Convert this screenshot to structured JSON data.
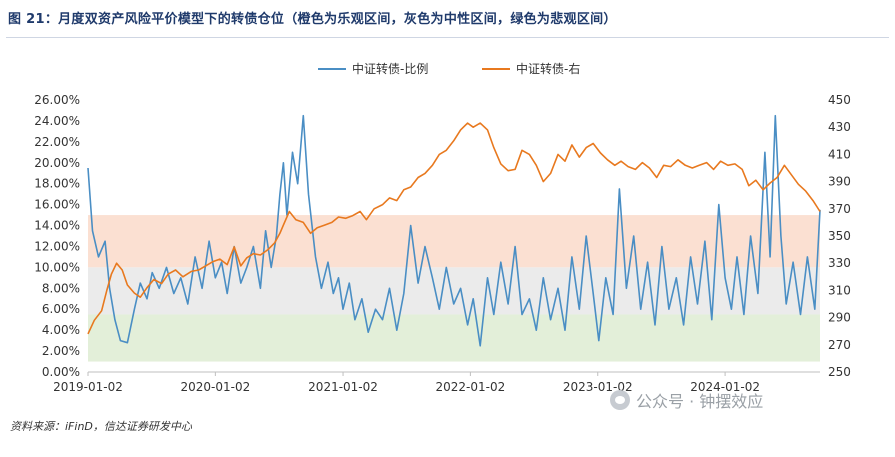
{
  "header": {
    "title": "图 21：月度双资产风险平价模型下的转债仓位（橙色为乐观区间，灰色为中性区间，绿色为悲观区间）"
  },
  "footer": {
    "source": "资料来源：iFinD，信达证券研发中心",
    "watermark": "公众号 · 钟摆效应"
  },
  "colors": {
    "ratio_line": "#4a8ec4",
    "right_line": "#e8791f",
    "band_optimistic": "#fbe0d2",
    "band_neutral": "#ebebeb",
    "band_pessimistic": "#e3efd9"
  },
  "chart_data": {
    "type": "line",
    "legend_position": "top",
    "grid": false,
    "x_ticks": [
      "2019-01-02",
      "2020-01-02",
      "2021-01-02",
      "2022-01-02",
      "2023-01-02",
      "2024-01-02"
    ],
    "x_range": [
      "2019-01-02",
      "2024-09-30"
    ],
    "y_left": {
      "ticks": [
        "0.00%",
        "2.00%",
        "4.00%",
        "6.00%",
        "8.00%",
        "10.00%",
        "12.00%",
        "14.00%",
        "16.00%",
        "18.00%",
        "20.00%",
        "22.00%",
        "24.00%",
        "26.00%"
      ],
      "range": [
        0,
        26
      ]
    },
    "y_right": {
      "ticks": [
        "250",
        "270",
        "290",
        "310",
        "330",
        "350",
        "370",
        "390",
        "410",
        "430",
        "450"
      ],
      "range": [
        250,
        450
      ]
    },
    "bands": [
      {
        "name": "乐观区间",
        "from": 10,
        "to": 15,
        "color": "#fbe0d2"
      },
      {
        "name": "中性区间",
        "from": 5.5,
        "to": 10,
        "color": "#ebebeb"
      },
      {
        "name": "悲观区间",
        "from": 1,
        "to": 5.5,
        "color": "#e3efd9"
      }
    ],
    "series": [
      {
        "name": "中证转债-比例",
        "axis": "left",
        "color": "#4a8ec4",
        "x": [
          "2019-01-02",
          "2019-01-15",
          "2019-02-01",
          "2019-02-20",
          "2019-03-05",
          "2019-03-20",
          "2019-04-05",
          "2019-04-25",
          "2019-05-15",
          "2019-06-01",
          "2019-06-20",
          "2019-07-05",
          "2019-07-25",
          "2019-08-15",
          "2019-09-05",
          "2019-09-25",
          "2019-10-15",
          "2019-11-05",
          "2019-11-25",
          "2019-12-15",
          "2020-01-02",
          "2020-01-20",
          "2020-02-05",
          "2020-02-25",
          "2020-03-15",
          "2020-04-01",
          "2020-04-20",
          "2020-05-10",
          "2020-05-25",
          "2020-06-10",
          "2020-06-25",
          "2020-07-05",
          "2020-07-15",
          "2020-07-25",
          "2020-08-10",
          "2020-08-25",
          "2020-09-10",
          "2020-09-25",
          "2020-10-15",
          "2020-11-01",
          "2020-11-20",
          "2020-12-05",
          "2020-12-20",
          "2021-01-02",
          "2021-01-20",
          "2021-02-05",
          "2021-02-25",
          "2021-03-15",
          "2021-04-05",
          "2021-04-25",
          "2021-05-15",
          "2021-06-05",
          "2021-06-25",
          "2021-07-15",
          "2021-08-05",
          "2021-08-25",
          "2021-09-15",
          "2021-10-05",
          "2021-10-25",
          "2021-11-15",
          "2021-12-05",
          "2021-12-25",
          "2022-01-10",
          "2022-01-30",
          "2022-02-20",
          "2022-03-10",
          "2022-03-30",
          "2022-04-20",
          "2022-05-10",
          "2022-05-30",
          "2022-06-20",
          "2022-07-10",
          "2022-07-30",
          "2022-08-20",
          "2022-09-10",
          "2022-09-30",
          "2022-10-20",
          "2022-11-10",
          "2022-11-30",
          "2022-12-20",
          "2023-01-05",
          "2023-01-25",
          "2023-02-15",
          "2023-03-05",
          "2023-03-25",
          "2023-04-15",
          "2023-05-05",
          "2023-05-25",
          "2023-06-15",
          "2023-07-05",
          "2023-07-25",
          "2023-08-15",
          "2023-09-05",
          "2023-09-25",
          "2023-10-15",
          "2023-11-05",
          "2023-11-25",
          "2023-12-15",
          "2024-01-02",
          "2024-01-20",
          "2024-02-05",
          "2024-02-25",
          "2024-03-15",
          "2024-04-05",
          "2024-04-25",
          "2024-05-10",
          "2024-05-25",
          "2024-06-10",
          "2024-06-25",
          "2024-07-15",
          "2024-08-05",
          "2024-08-25",
          "2024-09-15",
          "2024-09-30"
        ],
        "values": [
          19.5,
          13.5,
          11.0,
          12.5,
          8.0,
          5.0,
          3.0,
          2.8,
          6.0,
          8.5,
          7.0,
          9.5,
          8.0,
          10.0,
          7.5,
          9.0,
          6.5,
          11.0,
          8.0,
          12.5,
          9.0,
          10.5,
          7.5,
          12.0,
          8.5,
          10.0,
          12.0,
          8.0,
          13.5,
          10.0,
          13.0,
          17.0,
          20.0,
          15.0,
          21.0,
          18.0,
          24.5,
          17.0,
          11.0,
          8.0,
          10.5,
          7.5,
          9.0,
          6.0,
          8.5,
          5.0,
          7.0,
          3.8,
          6.0,
          5.0,
          8.0,
          4.0,
          7.5,
          14.0,
          8.5,
          12.0,
          9.0,
          6.0,
          10.0,
          6.5,
          8.0,
          4.5,
          7.0,
          2.5,
          9.0,
          5.5,
          10.5,
          6.5,
          12.0,
          5.5,
          7.0,
          4.0,
          9.0,
          5.0,
          8.0,
          4.0,
          11.0,
          6.0,
          13.0,
          7.5,
          3.0,
          9.0,
          5.5,
          17.5,
          8.0,
          13.0,
          6.0,
          10.5,
          4.5,
          12.0,
          6.0,
          9.0,
          4.5,
          11.0,
          6.5,
          12.5,
          5.0,
          16.0,
          9.0,
          6.0,
          11.0,
          5.5,
          13.0,
          7.5,
          21.0,
          11.0,
          24.5,
          13.0,
          6.5,
          10.5,
          5.5,
          11.0,
          6.0,
          15.5
        ]
      },
      {
        "name": "中证转债-右",
        "axis": "right",
        "color": "#e8791f",
        "x": [
          "2019-01-02",
          "2019-01-20",
          "2019-02-10",
          "2019-02-25",
          "2019-03-10",
          "2019-03-25",
          "2019-04-10",
          "2019-04-25",
          "2019-05-15",
          "2019-06-01",
          "2019-06-20",
          "2019-07-10",
          "2019-08-01",
          "2019-08-20",
          "2019-09-10",
          "2019-10-01",
          "2019-10-25",
          "2019-11-15",
          "2019-12-05",
          "2019-12-25",
          "2020-01-15",
          "2020-02-05",
          "2020-02-25",
          "2020-03-15",
          "2020-04-01",
          "2020-04-20",
          "2020-05-10",
          "2020-06-01",
          "2020-06-20",
          "2020-07-05",
          "2020-07-15",
          "2020-08-01",
          "2020-08-20",
          "2020-09-10",
          "2020-10-01",
          "2020-10-20",
          "2020-11-10",
          "2020-12-01",
          "2020-12-20",
          "2021-01-10",
          "2021-01-30",
          "2021-02-20",
          "2021-03-10",
          "2021-04-01",
          "2021-04-25",
          "2021-05-15",
          "2021-06-05",
          "2021-06-25",
          "2021-07-15",
          "2021-08-05",
          "2021-08-25",
          "2021-09-15",
          "2021-10-05",
          "2021-10-25",
          "2021-11-15",
          "2021-12-05",
          "2021-12-25",
          "2022-01-10",
          "2022-01-30",
          "2022-02-20",
          "2022-03-10",
          "2022-03-30",
          "2022-04-20",
          "2022-05-10",
          "2022-05-30",
          "2022-06-20",
          "2022-07-10",
          "2022-07-30",
          "2022-08-20",
          "2022-09-10",
          "2022-09-30",
          "2022-10-20",
          "2022-11-10",
          "2022-11-30",
          "2022-12-20",
          "2023-01-10",
          "2023-01-30",
          "2023-02-20",
          "2023-03-10",
          "2023-03-30",
          "2023-04-20",
          "2023-05-10",
          "2023-05-30",
          "2023-06-20",
          "2023-07-10",
          "2023-07-30",
          "2023-08-20",
          "2023-09-10",
          "2023-09-30",
          "2023-10-20",
          "2023-11-10",
          "2023-11-30",
          "2023-12-20",
          "2024-01-10",
          "2024-01-30",
          "2024-02-20",
          "2024-03-10",
          "2024-03-30",
          "2024-04-20",
          "2024-05-10",
          "2024-05-30",
          "2024-06-20",
          "2024-07-10",
          "2024-07-30",
          "2024-08-20",
          "2024-09-10",
          "2024-09-30"
        ],
        "values": [
          278,
          288,
          295,
          310,
          322,
          330,
          325,
          314,
          308,
          305,
          312,
          318,
          315,
          322,
          325,
          320,
          324,
          325,
          328,
          331,
          333,
          329,
          342,
          328,
          334,
          337,
          336,
          340,
          345,
          352,
          358,
          368,
          362,
          360,
          352,
          356,
          358,
          360,
          364,
          363,
          365,
          368,
          362,
          370,
          373,
          378,
          376,
          384,
          386,
          393,
          396,
          402,
          410,
          413,
          420,
          428,
          433,
          430,
          433,
          428,
          415,
          403,
          398,
          399,
          413,
          410,
          402,
          390,
          396,
          410,
          405,
          417,
          408,
          415,
          418,
          411,
          406,
          402,
          405,
          401,
          399,
          404,
          400,
          393,
          402,
          401,
          406,
          402,
          400,
          402,
          404,
          399,
          405,
          402,
          403,
          399,
          387,
          391,
          384,
          389,
          393,
          402,
          395,
          388,
          383,
          376,
          368
        ]
      }
    ]
  }
}
